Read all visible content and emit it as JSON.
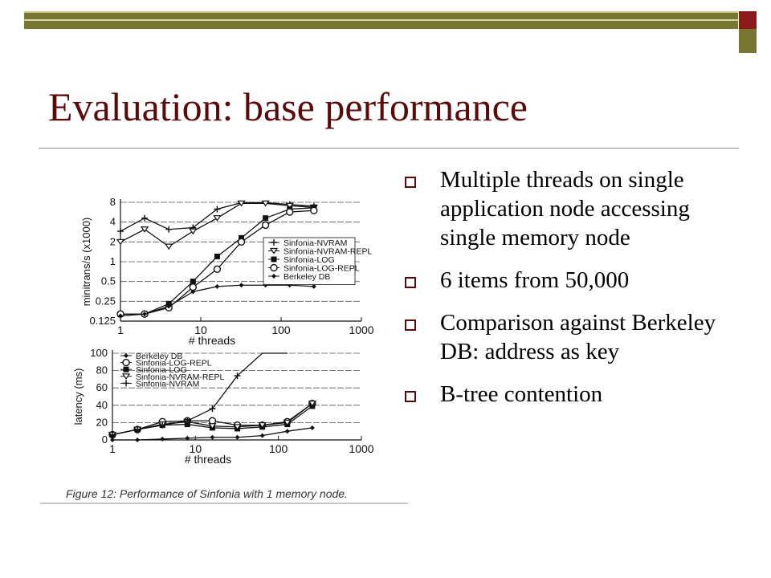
{
  "slide": {
    "title": "Evaluation: base performance",
    "bullets": [
      "Multiple threads on single application node accessing single memory node",
      "6 items from 50,000",
      "Comparison against Berkeley DB: address as key",
      "B-tree contention"
    ]
  },
  "chart_data": [
    {
      "type": "line",
      "title": "",
      "xlabel": "# threads",
      "ylabel": "minitrans/s (x1000)",
      "xscale": "log",
      "yscale": "log",
      "xlim": [
        1,
        1000
      ],
      "ylim": [
        0.125,
        8
      ],
      "xticks": [
        "1",
        "10",
        "100",
        "1000"
      ],
      "yticks": [
        "0.125",
        "0.25",
        "0.5",
        "1",
        "2",
        "4",
        "8"
      ],
      "legend_position": "right",
      "series": [
        {
          "name": "Sinfonia-NVRAM",
          "x": [
            1,
            2,
            4,
            8,
            16,
            32,
            64,
            128,
            256
          ],
          "y": [
            2.9,
            4.6,
            3.1,
            3.3,
            6.3,
            7.9,
            7.9,
            7.4,
            7.0
          ]
        },
        {
          "name": "Sinfonia-NVRAM-REPL",
          "x": [
            1,
            2,
            4,
            8,
            16,
            32,
            64,
            128,
            256
          ],
          "y": [
            2.0,
            3.1,
            1.7,
            2.9,
            4.6,
            7.7,
            7.7,
            7.1,
            6.7
          ]
        },
        {
          "name": "Sinfonia-LOG",
          "x": [
            1,
            2,
            4,
            8,
            16,
            32,
            64,
            128,
            256
          ],
          "y": [
            0.16,
            0.16,
            0.23,
            0.5,
            1.2,
            2.3,
            4.6,
            6.3,
            6.6
          ]
        },
        {
          "name": "Sinfonia-LOG-REPL",
          "x": [
            1,
            2,
            4,
            8,
            16,
            32,
            64,
            128,
            256
          ],
          "y": [
            0.16,
            0.16,
            0.2,
            0.41,
            0.77,
            2.0,
            3.6,
            5.7,
            6.0
          ]
        },
        {
          "name": "Berkeley DB",
          "x": [
            1,
            2,
            4,
            8,
            16,
            32,
            64,
            128,
            256
          ],
          "y": [
            0.15,
            0.16,
            0.21,
            0.35,
            0.42,
            0.44,
            0.44,
            0.44,
            0.42
          ]
        }
      ]
    },
    {
      "type": "line",
      "title": "",
      "xlabel": "# threads",
      "ylabel": "latency (ms)",
      "xscale": "log",
      "xlim": [
        1,
        1000
      ],
      "ylim": [
        0,
        100
      ],
      "xticks": [
        "1",
        "10",
        "100",
        "1000"
      ],
      "yticks": [
        "0",
        "20",
        "40",
        "60",
        "80",
        "100"
      ],
      "legend_position": "top-left",
      "series": [
        {
          "name": "Berkeley DB",
          "x": [
            1,
            2,
            4,
            8,
            16,
            32,
            64,
            128,
            256
          ],
          "y": [
            0,
            0,
            1,
            2,
            3,
            3,
            5,
            10,
            14
          ]
        },
        {
          "name": "Sinfonia-LOG-REPL",
          "x": [
            1,
            2,
            4,
            8,
            16,
            32,
            64,
            128,
            256
          ],
          "y": [
            6,
            12,
            21,
            22,
            22,
            17,
            17,
            21,
            42
          ]
        },
        {
          "name": "Sinfonia-LOG",
          "x": [
            1,
            2,
            4,
            8,
            16,
            32,
            64,
            128,
            256
          ],
          "y": [
            6,
            12,
            17,
            18,
            14,
            13,
            15,
            18,
            39
          ]
        },
        {
          "name": "Sinfonia-NVRAM-REPL",
          "x": [
            1,
            2,
            4,
            8,
            16,
            32,
            64,
            128,
            256
          ],
          "y": [
            6,
            12,
            18,
            21,
            16,
            15,
            17,
            20,
            42
          ]
        },
        {
          "name": "Sinfonia-NVRAM",
          "x": [
            1,
            2,
            4,
            8,
            16,
            32,
            64,
            128
          ],
          "y": [
            6,
            12,
            17,
            22,
            36,
            74,
            100,
            100
          ]
        }
      ]
    }
  ],
  "figure": {
    "caption": "Figure 12: Performance of Sinfonia with 1 memory node."
  }
}
